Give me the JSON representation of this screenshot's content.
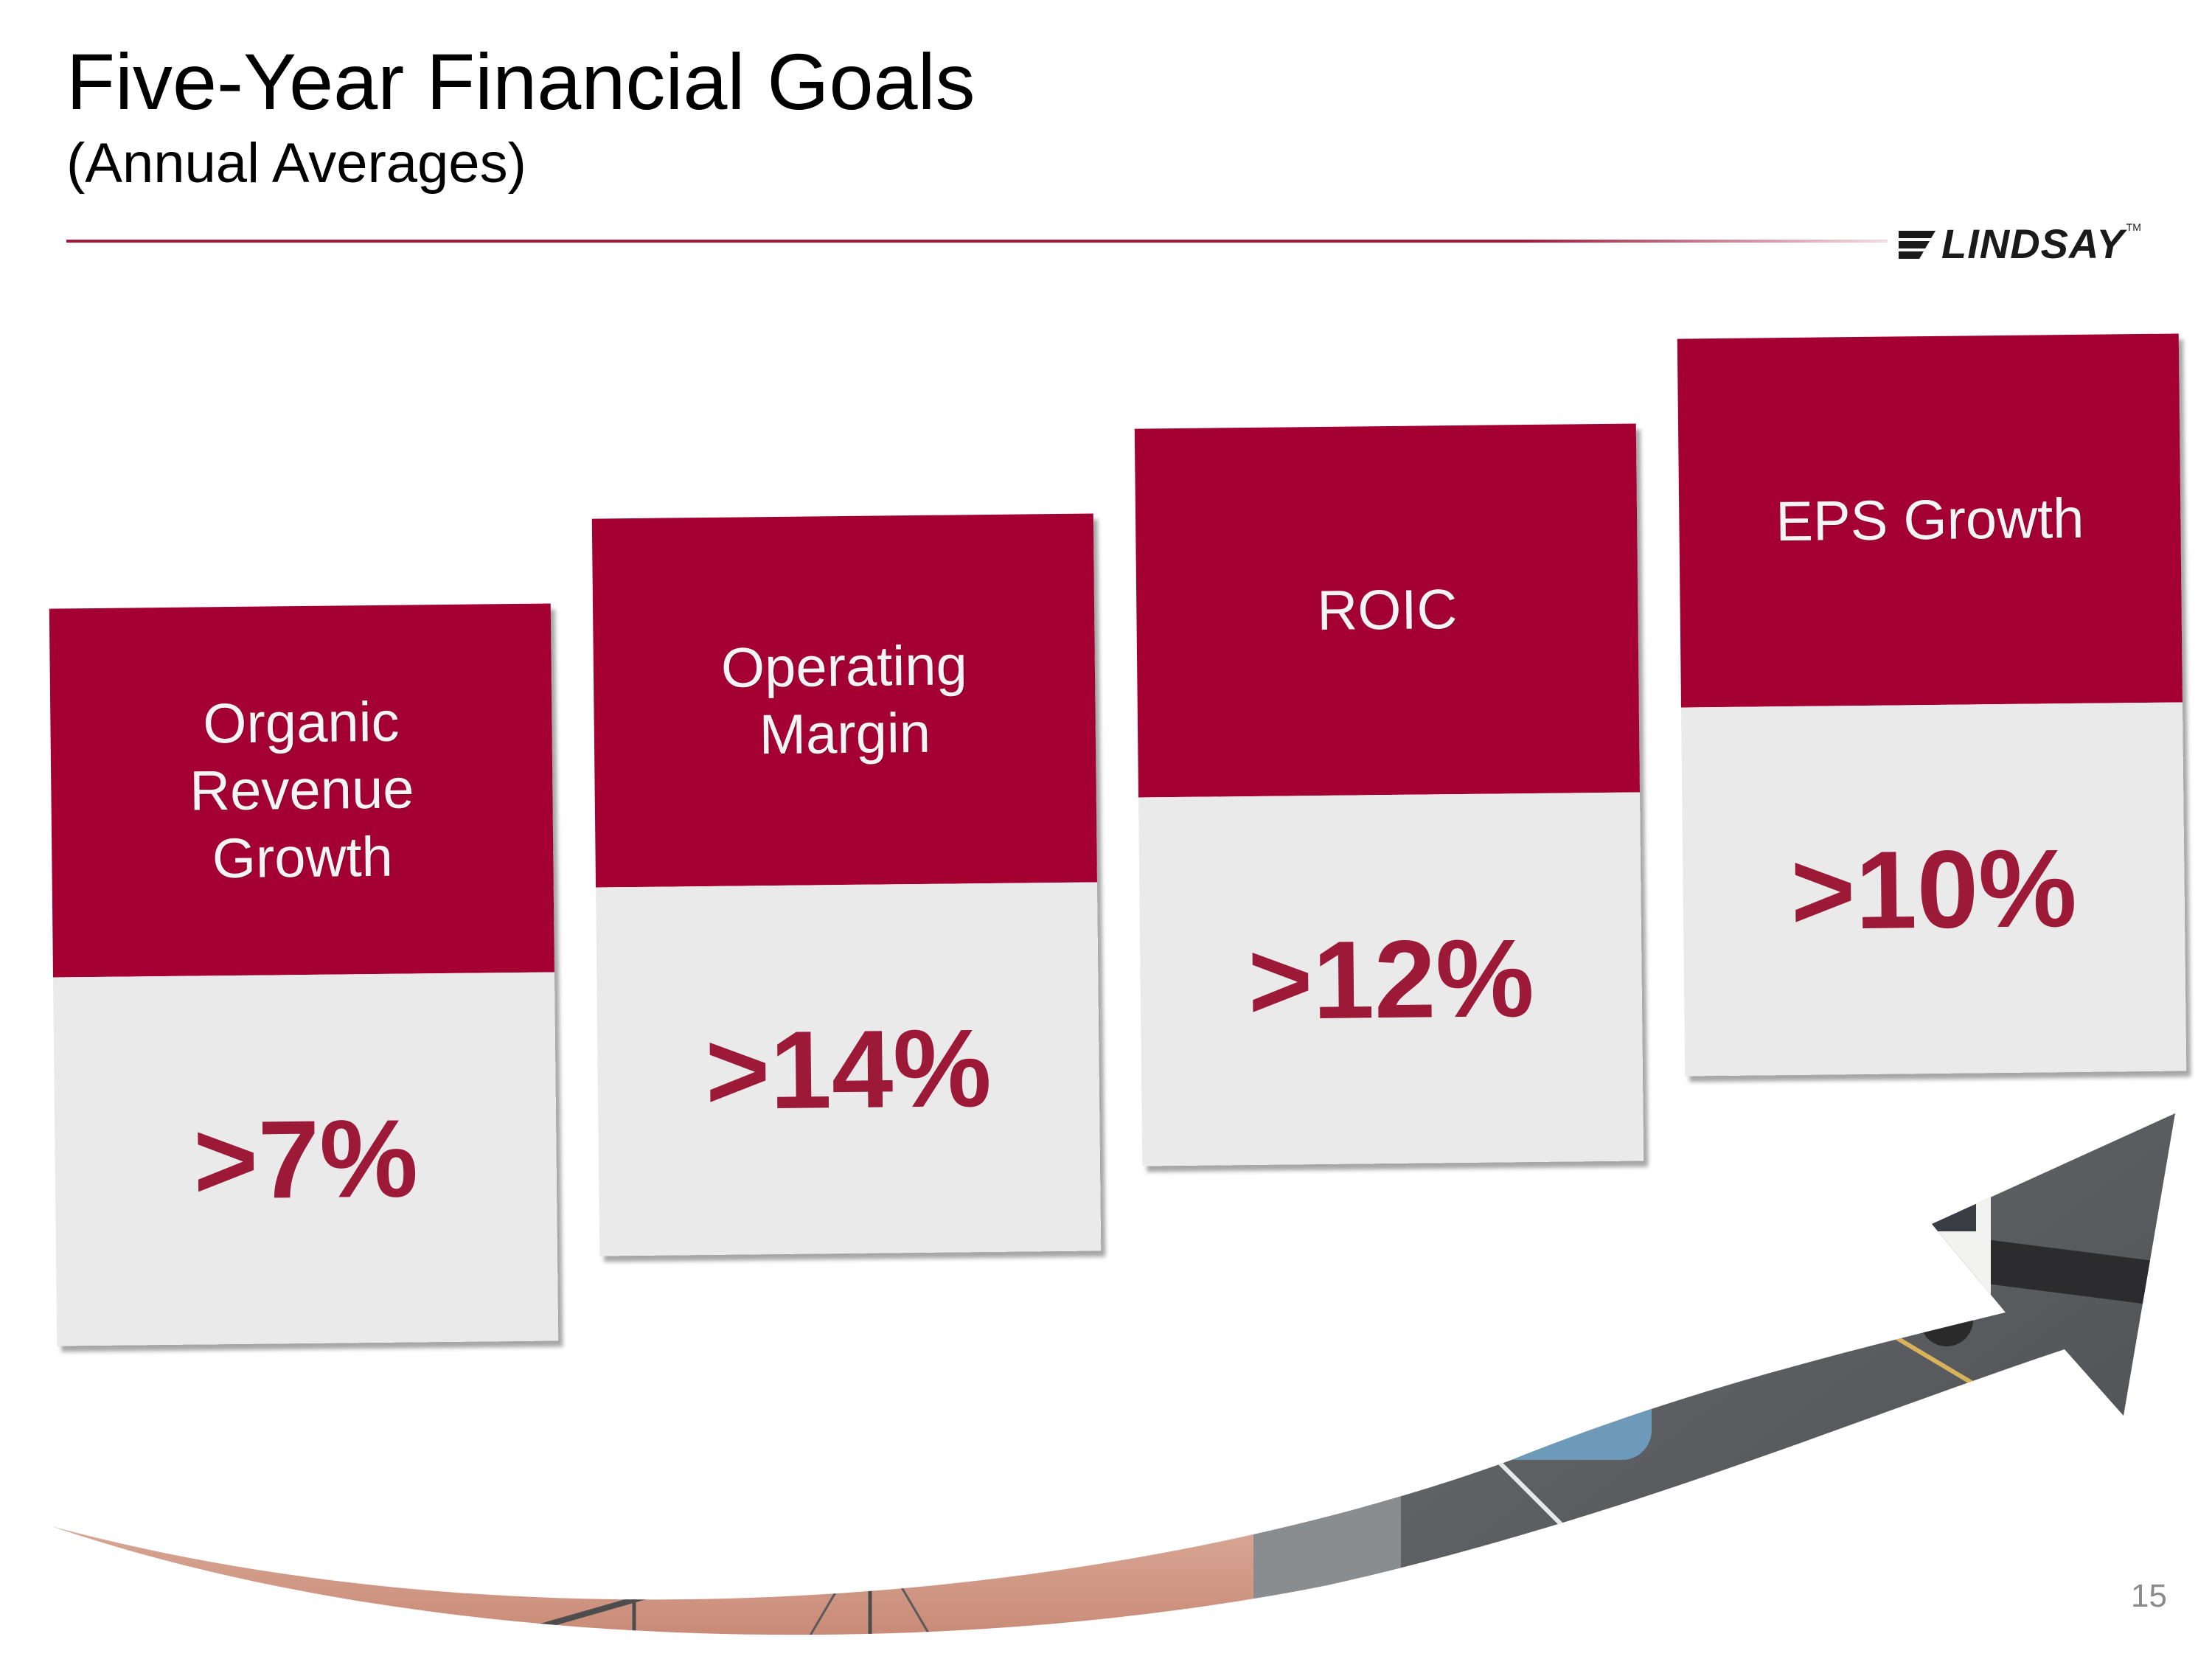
{
  "slide": {
    "title": "Five-Year Financial Goals",
    "subtitle": "(Annual Averages)",
    "page_number": "15"
  },
  "logo": {
    "text": "LINDSAY",
    "trademark": "TM"
  },
  "goals": [
    {
      "label": "Organic\nRevenue\nGrowth",
      "value": ">7%"
    },
    {
      "label": "Operating\nMargin",
      "value": ">14%"
    },
    {
      "label": "ROIC",
      "value": ">12%"
    },
    {
      "label": "EPS Growth",
      "value": ">10%"
    }
  ],
  "colors": {
    "accent": "#a50034",
    "value_text": "#9c1a38",
    "card_light": "#eaeaea"
  }
}
